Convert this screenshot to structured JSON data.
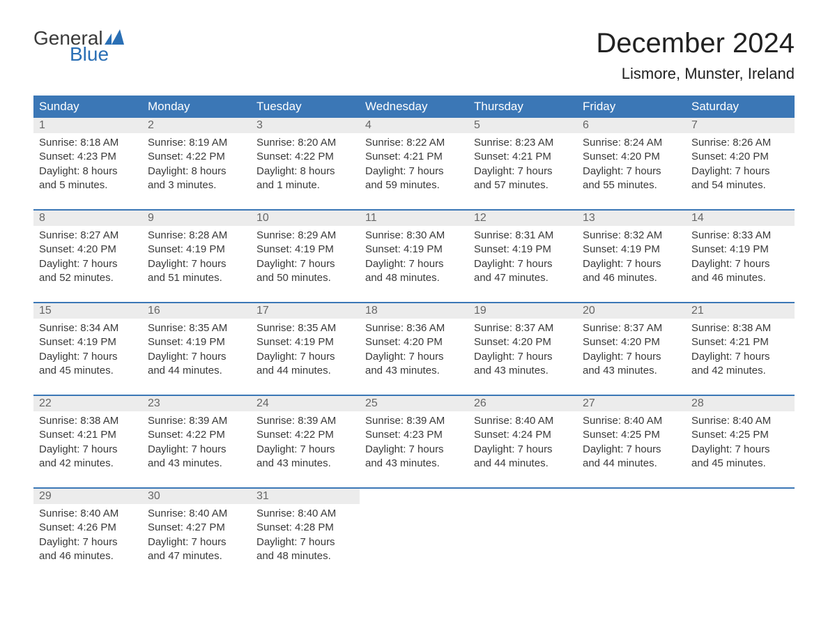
{
  "brand": {
    "general": "General",
    "blue": "Blue",
    "icon_color": "#2a6fb5",
    "text_color": "#3a3a3a"
  },
  "title": "December 2024",
  "location": "Lismore, Munster, Ireland",
  "colors": {
    "header_bg": "#3b77b6",
    "header_text": "#ffffff",
    "daynum_bg": "#ececec",
    "daynum_text": "#666666",
    "cell_text": "#3a3a3a",
    "separator": "#3b77b6",
    "page_bg": "#ffffff"
  },
  "fonts": {
    "title_size": 40,
    "location_size": 22,
    "header_size": 17,
    "daynum_size": 16,
    "detail_size": 15
  },
  "day_headers": [
    "Sunday",
    "Monday",
    "Tuesday",
    "Wednesday",
    "Thursday",
    "Friday",
    "Saturday"
  ],
  "weeks": [
    [
      {
        "n": "1",
        "sunrise": "Sunrise: 8:18 AM",
        "sunset": "Sunset: 4:23 PM",
        "d1": "Daylight: 8 hours",
        "d2": "and 5 minutes."
      },
      {
        "n": "2",
        "sunrise": "Sunrise: 8:19 AM",
        "sunset": "Sunset: 4:22 PM",
        "d1": "Daylight: 8 hours",
        "d2": "and 3 minutes."
      },
      {
        "n": "3",
        "sunrise": "Sunrise: 8:20 AM",
        "sunset": "Sunset: 4:22 PM",
        "d1": "Daylight: 8 hours",
        "d2": "and 1 minute."
      },
      {
        "n": "4",
        "sunrise": "Sunrise: 8:22 AM",
        "sunset": "Sunset: 4:21 PM",
        "d1": "Daylight: 7 hours",
        "d2": "and 59 minutes."
      },
      {
        "n": "5",
        "sunrise": "Sunrise: 8:23 AM",
        "sunset": "Sunset: 4:21 PM",
        "d1": "Daylight: 7 hours",
        "d2": "and 57 minutes."
      },
      {
        "n": "6",
        "sunrise": "Sunrise: 8:24 AM",
        "sunset": "Sunset: 4:20 PM",
        "d1": "Daylight: 7 hours",
        "d2": "and 55 minutes."
      },
      {
        "n": "7",
        "sunrise": "Sunrise: 8:26 AM",
        "sunset": "Sunset: 4:20 PM",
        "d1": "Daylight: 7 hours",
        "d2": "and 54 minutes."
      }
    ],
    [
      {
        "n": "8",
        "sunrise": "Sunrise: 8:27 AM",
        "sunset": "Sunset: 4:20 PM",
        "d1": "Daylight: 7 hours",
        "d2": "and 52 minutes."
      },
      {
        "n": "9",
        "sunrise": "Sunrise: 8:28 AM",
        "sunset": "Sunset: 4:19 PM",
        "d1": "Daylight: 7 hours",
        "d2": "and 51 minutes."
      },
      {
        "n": "10",
        "sunrise": "Sunrise: 8:29 AM",
        "sunset": "Sunset: 4:19 PM",
        "d1": "Daylight: 7 hours",
        "d2": "and 50 minutes."
      },
      {
        "n": "11",
        "sunrise": "Sunrise: 8:30 AM",
        "sunset": "Sunset: 4:19 PM",
        "d1": "Daylight: 7 hours",
        "d2": "and 48 minutes."
      },
      {
        "n": "12",
        "sunrise": "Sunrise: 8:31 AM",
        "sunset": "Sunset: 4:19 PM",
        "d1": "Daylight: 7 hours",
        "d2": "and 47 minutes."
      },
      {
        "n": "13",
        "sunrise": "Sunrise: 8:32 AM",
        "sunset": "Sunset: 4:19 PM",
        "d1": "Daylight: 7 hours",
        "d2": "and 46 minutes."
      },
      {
        "n": "14",
        "sunrise": "Sunrise: 8:33 AM",
        "sunset": "Sunset: 4:19 PM",
        "d1": "Daylight: 7 hours",
        "d2": "and 46 minutes."
      }
    ],
    [
      {
        "n": "15",
        "sunrise": "Sunrise: 8:34 AM",
        "sunset": "Sunset: 4:19 PM",
        "d1": "Daylight: 7 hours",
        "d2": "and 45 minutes."
      },
      {
        "n": "16",
        "sunrise": "Sunrise: 8:35 AM",
        "sunset": "Sunset: 4:19 PM",
        "d1": "Daylight: 7 hours",
        "d2": "and 44 minutes."
      },
      {
        "n": "17",
        "sunrise": "Sunrise: 8:35 AM",
        "sunset": "Sunset: 4:19 PM",
        "d1": "Daylight: 7 hours",
        "d2": "and 44 minutes."
      },
      {
        "n": "18",
        "sunrise": "Sunrise: 8:36 AM",
        "sunset": "Sunset: 4:20 PM",
        "d1": "Daylight: 7 hours",
        "d2": "and 43 minutes."
      },
      {
        "n": "19",
        "sunrise": "Sunrise: 8:37 AM",
        "sunset": "Sunset: 4:20 PM",
        "d1": "Daylight: 7 hours",
        "d2": "and 43 minutes."
      },
      {
        "n": "20",
        "sunrise": "Sunrise: 8:37 AM",
        "sunset": "Sunset: 4:20 PM",
        "d1": "Daylight: 7 hours",
        "d2": "and 43 minutes."
      },
      {
        "n": "21",
        "sunrise": "Sunrise: 8:38 AM",
        "sunset": "Sunset: 4:21 PM",
        "d1": "Daylight: 7 hours",
        "d2": "and 42 minutes."
      }
    ],
    [
      {
        "n": "22",
        "sunrise": "Sunrise: 8:38 AM",
        "sunset": "Sunset: 4:21 PM",
        "d1": "Daylight: 7 hours",
        "d2": "and 42 minutes."
      },
      {
        "n": "23",
        "sunrise": "Sunrise: 8:39 AM",
        "sunset": "Sunset: 4:22 PM",
        "d1": "Daylight: 7 hours",
        "d2": "and 43 minutes."
      },
      {
        "n": "24",
        "sunrise": "Sunrise: 8:39 AM",
        "sunset": "Sunset: 4:22 PM",
        "d1": "Daylight: 7 hours",
        "d2": "and 43 minutes."
      },
      {
        "n": "25",
        "sunrise": "Sunrise: 8:39 AM",
        "sunset": "Sunset: 4:23 PM",
        "d1": "Daylight: 7 hours",
        "d2": "and 43 minutes."
      },
      {
        "n": "26",
        "sunrise": "Sunrise: 8:40 AM",
        "sunset": "Sunset: 4:24 PM",
        "d1": "Daylight: 7 hours",
        "d2": "and 44 minutes."
      },
      {
        "n": "27",
        "sunrise": "Sunrise: 8:40 AM",
        "sunset": "Sunset: 4:25 PM",
        "d1": "Daylight: 7 hours",
        "d2": "and 44 minutes."
      },
      {
        "n": "28",
        "sunrise": "Sunrise: 8:40 AM",
        "sunset": "Sunset: 4:25 PM",
        "d1": "Daylight: 7 hours",
        "d2": "and 45 minutes."
      }
    ],
    [
      {
        "n": "29",
        "sunrise": "Sunrise: 8:40 AM",
        "sunset": "Sunset: 4:26 PM",
        "d1": "Daylight: 7 hours",
        "d2": "and 46 minutes."
      },
      {
        "n": "30",
        "sunrise": "Sunrise: 8:40 AM",
        "sunset": "Sunset: 4:27 PM",
        "d1": "Daylight: 7 hours",
        "d2": "and 47 minutes."
      },
      {
        "n": "31",
        "sunrise": "Sunrise: 8:40 AM",
        "sunset": "Sunset: 4:28 PM",
        "d1": "Daylight: 7 hours",
        "d2": "and 48 minutes."
      },
      null,
      null,
      null,
      null
    ]
  ]
}
